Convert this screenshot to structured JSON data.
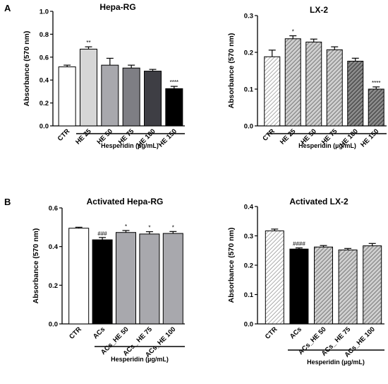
{
  "panel_labels": [
    "A",
    "B"
  ],
  "chart_data": [
    {
      "type": "bar",
      "title": "Hepa-RG",
      "ylabel": "Absorbance (570 nm)",
      "group_label": "Hesperidin (µg/mL)",
      "categories": [
        "CTR",
        "HE 25",
        "HE 50",
        "HE 75",
        "HE 100",
        "HE 150"
      ],
      "values": [
        0.515,
        0.67,
        0.53,
        0.505,
        0.478,
        0.325
      ],
      "errors": [
        0.015,
        0.02,
        0.06,
        0.025,
        0.015,
        0.02
      ],
      "annotations": [
        "",
        "**",
        "",
        "",
        "",
        "****"
      ],
      "fills": [
        "#ffffff",
        "#d6d6d6",
        "#a8a8ad",
        "#7e7e84",
        "#3e3e44",
        "#000000"
      ],
      "ylim": [
        0,
        1.0
      ],
      "yticks": [
        0.0,
        0.2,
        0.4,
        0.6,
        0.8,
        1.0
      ],
      "ytick_labels": [
        "0.0",
        "0.2",
        "0.4",
        "0.6",
        "0.8",
        "1.0"
      ],
      "grid": false
    },
    {
      "type": "bar",
      "title": "LX-2",
      "ylabel": "Absorbance (570 nm)",
      "group_label": "Hesperidin (µg/mL)",
      "categories": [
        "CTR",
        "HE 25",
        "HE 50",
        "HE 75",
        "HE 100",
        "HE 150"
      ],
      "values": [
        0.188,
        0.237,
        0.228,
        0.207,
        0.176,
        0.1
      ],
      "errors": [
        0.018,
        0.008,
        0.008,
        0.008,
        0.008,
        0.006
      ],
      "annotations": [
        "",
        "*",
        "",
        "",
        "",
        "****"
      ],
      "fills": [
        "#e6e6e6",
        "#d3d3d3",
        "#bcbcbc",
        "#a2a2a2",
        "#8a8a8a",
        "#4a4a4a"
      ],
      "ylim": [
        0,
        0.3
      ],
      "yticks": [
        0.0,
        0.1,
        0.2,
        0.3
      ],
      "ytick_labels": [
        "0.0",
        "0.1",
        "0.2",
        "0.3"
      ],
      "grid": false
    },
    {
      "type": "bar",
      "title": "Activated  Hepa-RG",
      "ylabel": "Absorbance (570 nm)",
      "group_label": "Hesperidin (µg/mL)",
      "categories": [
        "CTR",
        "ACs",
        "ACs_HE 50",
        "ACs_ HE 75",
        "ACs_HE 100"
      ],
      "values": [
        0.495,
        0.435,
        0.473,
        0.465,
        0.468
      ],
      "errors": [
        0.005,
        0.012,
        0.01,
        0.012,
        0.01
      ],
      "annotations": [
        "",
        "###",
        "*",
        "*",
        "*"
      ],
      "fills": [
        "#ffffff",
        "#000000",
        "#a8a8ad",
        "#a8a8ad",
        "#a8a8ad"
      ],
      "ylim": [
        0,
        0.6
      ],
      "yticks": [
        0.0,
        0.2,
        0.4,
        0.6
      ],
      "ytick_labels": [
        "0.0",
        "0.2",
        "0.4",
        "0.6"
      ],
      "grid": false
    },
    {
      "type": "bar",
      "title": "Activated LX-2",
      "ylabel": "Absorbance (570 nm)",
      "group_label": "Hesperidin (µg/mL)",
      "categories": [
        "CTR",
        "ACs",
        "ACs_HE 50",
        "ACs_ HE 75",
        "ACs_HE 100"
      ],
      "values": [
        0.317,
        0.255,
        0.262,
        0.252,
        0.266
      ],
      "errors": [
        0.006,
        0.004,
        0.005,
        0.005,
        0.008
      ],
      "annotations": [
        "",
        "####",
        "",
        "",
        ""
      ],
      "fills": [
        "#e6e6e6",
        "#000000",
        "#a2a2a2",
        "#a2a2a2",
        "#a2a2a2"
      ],
      "ylim": [
        0,
        0.4
      ],
      "yticks": [
        0.0,
        0.1,
        0.2,
        0.3,
        0.4
      ],
      "ytick_labels": [
        "0.0",
        "0.1",
        "0.2",
        "0.3",
        "0.4"
      ],
      "grid": false
    }
  ]
}
